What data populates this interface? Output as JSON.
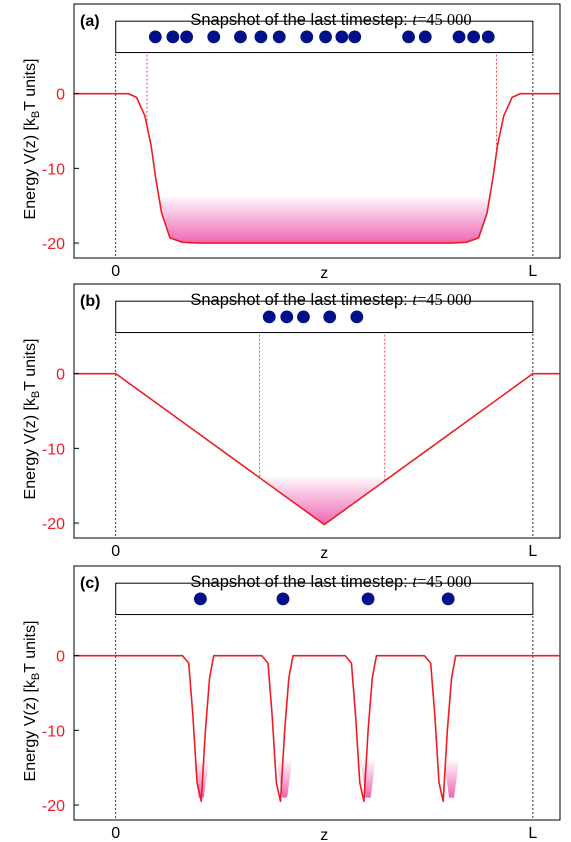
{
  "figure": {
    "colors": {
      "curve": "#ee1c25",
      "fill": "#e4007f",
      "particle": "#000f8a",
      "axis": "#000000",
      "dashed": "#444444"
    }
  },
  "chart_data": [
    {
      "type": "line",
      "panel_label": "(a)",
      "title_text": "Snapshot of the last timestep: ",
      "title_var": "t",
      "title_value": "=45 000",
      "ylabel": "Energy V(z) [k",
      "ylabel_sub": "B",
      "ylabel_end": "T units]",
      "xlabel": "z",
      "x_tick_labels": [
        "0",
        "L"
      ],
      "y_ticks": [
        0,
        -10,
        -20
      ],
      "ylim": [
        -22,
        12
      ],
      "xlim": [
        -0.1,
        1.065
      ],
      "box_range": [
        0,
        1
      ],
      "series": [
        {
          "x": [
            -0.1,
            0.0,
            0.03,
            0.05,
            0.07,
            0.085,
            0.095,
            0.11,
            0.13,
            0.16,
            0.2,
            0.8,
            0.84,
            0.87,
            0.89,
            0.905,
            0.915,
            0.93,
            0.95,
            0.97,
            1.0,
            1.065
          ],
          "y": [
            0,
            0,
            0,
            -0.5,
            -3,
            -7,
            -11,
            -16,
            -19.3,
            -19.9,
            -20,
            -20,
            -19.9,
            -19.3,
            -16,
            -11,
            -7,
            -3,
            -0.5,
            0,
            0,
            0
          ]
        }
      ],
      "fill_range": [
        0.08,
        0.92
      ],
      "fill_top": -13.8,
      "particles_x": [
        0.095,
        0.137,
        0.17,
        0.235,
        0.299,
        0.348,
        0.392,
        0.458,
        0.503,
        0.542,
        0.573,
        0.702,
        0.742,
        0.823,
        0.858,
        0.893
      ],
      "particle_bounds": [
        0.075,
        0.913
      ]
    },
    {
      "type": "line",
      "panel_label": "(b)",
      "title_text": "Snapshot of the last timestep: ",
      "title_var": "t",
      "title_value": "=45 000",
      "ylabel": "Energy V(z) [k",
      "ylabel_sub": "B",
      "ylabel_end": "T units]",
      "xlabel": "z",
      "x_tick_labels": [
        "0",
        "L"
      ],
      "y_ticks": [
        0,
        -10,
        -20
      ],
      "ylim": [
        -22,
        12
      ],
      "xlim": [
        -0.1,
        1.065
      ],
      "box_range": [
        0,
        1
      ],
      "series": [
        {
          "x": [
            -0.1,
            0.0,
            0.5,
            1.0,
            1.065
          ],
          "y": [
            0,
            0,
            -20.2,
            0,
            0
          ]
        }
      ],
      "fill_range": [
        0.35,
        0.65
      ],
      "fill_top": -13.8,
      "particles_x": [
        0.368,
        0.41,
        0.45,
        0.513,
        0.578
      ],
      "particle_bounds": [
        0.345,
        0.645
      ]
    },
    {
      "type": "line",
      "panel_label": "(c)",
      "title_text": "Snapshot of the last timestep: ",
      "title_var": "t",
      "title_value": "=45 000",
      "ylabel": "Energy V(z) [k",
      "ylabel_sub": "B",
      "ylabel_end": "T units]",
      "xlabel": "z",
      "x_tick_labels": [
        "0",
        "L"
      ],
      "y_ticks": [
        0,
        -10,
        -20
      ],
      "ylim": [
        -22,
        12
      ],
      "xlim": [
        -0.1,
        1.065
      ],
      "box_range": [
        0,
        1
      ],
      "series": [
        {
          "x": [
            -0.1,
            0.0,
            0.16,
            0.175,
            0.185,
            0.195,
            0.205,
            0.215,
            0.225,
            0.235,
            0.25,
            0.35,
            0.365,
            0.375,
            0.385,
            0.395,
            0.405,
            0.415,
            0.425,
            0.44,
            0.55,
            0.565,
            0.575,
            0.585,
            0.595,
            0.605,
            0.615,
            0.625,
            0.64,
            0.74,
            0.755,
            0.765,
            0.775,
            0.785,
            0.795,
            0.805,
            0.815,
            0.83,
            1.0,
            1.065
          ],
          "y": [
            0,
            0,
            0,
            -1,
            -8,
            -17,
            -19.5,
            -10,
            -3,
            0,
            0,
            0,
            -1,
            -8,
            -17,
            -19.5,
            -10,
            -3,
            0,
            0,
            0,
            -1,
            -8,
            -17,
            -19.5,
            -10,
            -3,
            0,
            0,
            0,
            -1,
            -8,
            -17,
            -19.5,
            -10,
            -3,
            0,
            0,
            0,
            0
          ]
        }
      ],
      "wells_x": [
        0.205,
        0.405,
        0.605,
        0.805
      ],
      "particles_x": [
        0.203,
        0.401,
        0.605,
        0.797
      ]
    }
  ]
}
